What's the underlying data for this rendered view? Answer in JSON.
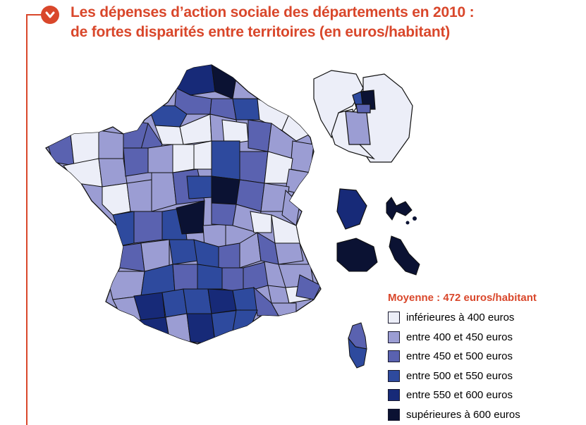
{
  "header": {
    "title_line1": "Les dépenses d’action sociale des départements en 2010 :",
    "title_line2": "de fortes disparités entre territoires (en euros/habitant)",
    "badge_icon": "chevron-down-icon"
  },
  "legend": {
    "title": "Moyenne : 472 euros/habitant",
    "items": [
      {
        "label": "inférieures à 400 euros",
        "color": "#eceef8"
      },
      {
        "label": "entre 400 et 450 euros",
        "color": "#9b9dd3"
      },
      {
        "label": "entre 450 et 500 euros",
        "color": "#5a62b0"
      },
      {
        "label": "entre 500 et 550 euros",
        "color": "#2e4a9e"
      },
      {
        "label": "entre 550 et 600 euros",
        "color": "#172a78"
      },
      {
        "label": "supérieures à 600 euros",
        "color": "#0b1233"
      }
    ]
  },
  "colors": {
    "accent": "#d9472b",
    "border": "#111111"
  }
}
